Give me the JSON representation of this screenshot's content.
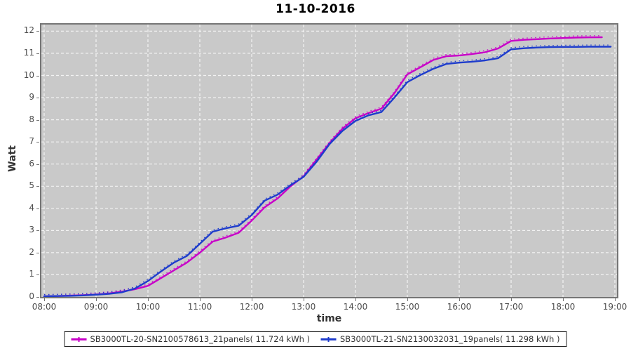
{
  "title": "11-10-2016",
  "axes": {
    "y_label": "Watt",
    "x_label": "time",
    "y_ticks": [
      0,
      1,
      2,
      3,
      4,
      5,
      6,
      7,
      8,
      9,
      10,
      11,
      12
    ],
    "x_ticks": [
      "08:00",
      "09:00",
      "10:00",
      "11:00",
      "12:00",
      "13:00",
      "14:00",
      "15:00",
      "16:00",
      "17:00",
      "18:00",
      "19:00"
    ]
  },
  "colors": {
    "series_magenta": "#c800c8",
    "series_blue": "#1e3ccc",
    "plot_background": "#c9c9c9",
    "gridline": "#f2f2f2",
    "plot_border": "#757575",
    "tick_label": "#4d4d4d",
    "title_text": "#000000",
    "legend_border": "#222222"
  },
  "legend": {
    "entries": [
      {
        "label": "SB3000TL-20-SN2100578613_21panels( 11.724 kWh )",
        "color": "#c800c8"
      },
      {
        "label": "SB3000TL-21-SN2130032031_19panels( 11.298 kWh )",
        "color": "#1e3ccc"
      }
    ]
  },
  "chart_data": {
    "type": "line",
    "title": "11-10-2016",
    "xlabel": "time",
    "ylabel": "Watt",
    "x_axis_hours": [
      8,
      9,
      10,
      11,
      12,
      13,
      14,
      15,
      16,
      17,
      18,
      19
    ],
    "ylim": [
      0,
      12
    ],
    "grid": true,
    "legend_position": "bottom",
    "series": [
      {
        "name": "SB3000TL-20-SN2100578613_21panels( 11.724 kWh )",
        "color": "#c800c8",
        "total_kwh": 11.724,
        "x": [
          8.0,
          8.25,
          8.5,
          8.75,
          9.0,
          9.25,
          9.5,
          9.75,
          10.0,
          10.25,
          10.5,
          10.75,
          11.0,
          11.25,
          11.5,
          11.75,
          12.0,
          12.25,
          12.5,
          12.75,
          13.0,
          13.25,
          13.5,
          13.75,
          14.0,
          14.25,
          14.5,
          14.75,
          15.0,
          15.25,
          15.5,
          15.75,
          16.0,
          16.25,
          16.5,
          16.75,
          17.0,
          17.25,
          17.5,
          17.75,
          18.0,
          18.25,
          18.5,
          18.75
        ],
        "values": [
          0.03,
          0.04,
          0.06,
          0.08,
          0.11,
          0.16,
          0.24,
          0.35,
          0.5,
          0.85,
          1.2,
          1.55,
          2.0,
          2.5,
          2.68,
          2.9,
          3.45,
          4.05,
          4.45,
          5.0,
          5.45,
          6.2,
          6.95,
          7.6,
          8.07,
          8.3,
          8.5,
          9.2,
          10.05,
          10.37,
          10.7,
          10.87,
          10.9,
          10.97,
          11.05,
          11.22,
          11.56,
          11.61,
          11.64,
          11.67,
          11.69,
          11.71,
          11.72,
          11.724
        ]
      },
      {
        "name": "SB3000TL-21-SN2130032031_19panels( 11.298 kWh )",
        "color": "#1e3ccc",
        "total_kwh": 11.298,
        "x": [
          8.0,
          8.25,
          8.5,
          8.75,
          9.0,
          9.25,
          9.5,
          9.75,
          10.0,
          10.25,
          10.5,
          10.75,
          11.0,
          11.25,
          11.5,
          11.75,
          12.0,
          12.25,
          12.5,
          12.75,
          13.0,
          13.25,
          13.5,
          13.75,
          14.0,
          14.25,
          14.5,
          14.75,
          15.0,
          15.25,
          15.5,
          15.75,
          16.0,
          16.25,
          16.5,
          16.75,
          17.0,
          17.25,
          17.5,
          17.75,
          18.0,
          18.25,
          18.5,
          18.75,
          18.92
        ],
        "values": [
          0.03,
          0.04,
          0.05,
          0.07,
          0.1,
          0.14,
          0.21,
          0.38,
          0.72,
          1.15,
          1.55,
          1.85,
          2.4,
          2.95,
          3.1,
          3.22,
          3.7,
          4.35,
          4.62,
          5.05,
          5.42,
          6.1,
          6.9,
          7.5,
          7.95,
          8.2,
          8.35,
          9.0,
          9.7,
          10.02,
          10.3,
          10.52,
          10.58,
          10.62,
          10.68,
          10.78,
          11.18,
          11.23,
          11.26,
          11.28,
          11.29,
          11.29,
          11.3,
          11.3,
          11.298
        ]
      }
    ]
  }
}
